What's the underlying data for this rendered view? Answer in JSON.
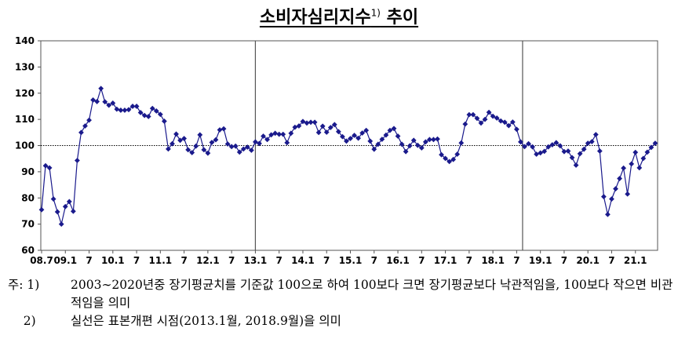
{
  "title": {
    "text": "소비자심리지수",
    "sup": "1)",
    "suffix": " 추이"
  },
  "chart_data": {
    "type": "line",
    "ylim": [
      60,
      140
    ],
    "yticks": [
      60,
      70,
      80,
      90,
      100,
      110,
      120,
      130,
      140
    ],
    "xtick_labels": [
      "08.7",
      "09.1",
      "7",
      "10.1",
      "7",
      "11.1",
      "7",
      "12.1",
      "7",
      "13.1",
      "7",
      "14.1",
      "7",
      "15.1",
      "7",
      "16.1",
      "7",
      "17.1",
      "7",
      "18.1",
      "7",
      "19.1",
      "7",
      "20.1",
      "7",
      "21.1"
    ],
    "reference_line": 100,
    "break_lines": [
      "2013.1",
      "2018.9"
    ],
    "grid": false,
    "series": [
      {
        "start": "2008.7",
        "values": [
          75.5,
          92.3,
          91.5,
          79.6,
          74.7,
          70.0,
          76.7,
          78.6,
          74.9,
          94.3,
          105.0,
          107.5,
          109.7,
          117.4,
          116.8,
          121.8,
          116.7,
          115.4,
          116.2,
          113.9,
          113.5,
          113.5,
          113.7,
          115.0,
          115.0,
          112.6,
          111.5,
          111.1,
          114.2,
          113.2,
          111.9,
          109.3,
          98.7,
          100.7,
          104.4,
          102.0,
          102.7,
          98.4,
          97.3,
          99.8,
          104.1,
          98.4,
          97.1,
          101.2,
          102.2,
          106.0,
          106.4,
          100.6,
          99.6,
          99.8,
          97.5,
          98.7,
          99.4,
          98.2,
          101.4,
          100.8,
          103.6,
          102.3,
          104.1,
          104.7,
          104.3,
          104.3,
          101.1,
          104.7,
          107.0,
          107.5,
          109.2,
          108.6,
          108.9,
          108.9,
          105.0,
          107.4,
          105.1,
          106.9,
          108.0,
          105.3,
          103.4,
          101.7,
          102.7,
          103.9,
          102.8,
          104.8,
          105.8,
          101.7,
          98.6,
          100.5,
          102.4,
          104.0,
          105.8,
          106.5,
          103.6,
          100.5,
          97.7,
          99.9,
          102.0,
          100.1,
          99.1,
          101.4,
          102.3,
          102.3,
          102.5,
          96.5,
          95.1,
          93.9,
          94.7,
          96.7,
          101.0,
          108.2,
          111.8,
          111.8,
          110.4,
          108.6,
          110.0,
          112.7,
          111.2,
          110.5,
          109.4,
          108.9,
          107.6,
          109.0,
          106.2,
          101.4,
          99.6,
          100.7,
          99.5,
          96.7,
          97.2,
          97.8,
          99.5,
          100.3,
          101.1,
          99.9,
          97.7,
          97.9,
          95.4,
          92.5,
          96.9,
          98.6,
          100.9,
          101.5,
          104.2,
          97.9,
          80.5,
          73.7,
          79.6,
          83.5,
          87.4,
          91.4,
          81.5,
          93.0,
          97.4,
          91.5,
          95.1,
          97.5,
          99.3,
          100.9
        ]
      }
    ]
  },
  "notes": [
    {
      "prefix": "주: 1)",
      "text": "2003∼2020년중 장기평균치를 기준값 100으로 하여 100보다 크면 장기평균보다 낙관적임을, 100보다 작으면 비관적임을 의미"
    },
    {
      "prefix": "    2)",
      "text": "실선은 표본개편 시점(2013.1월, 2018.9월)을 의미"
    }
  ]
}
